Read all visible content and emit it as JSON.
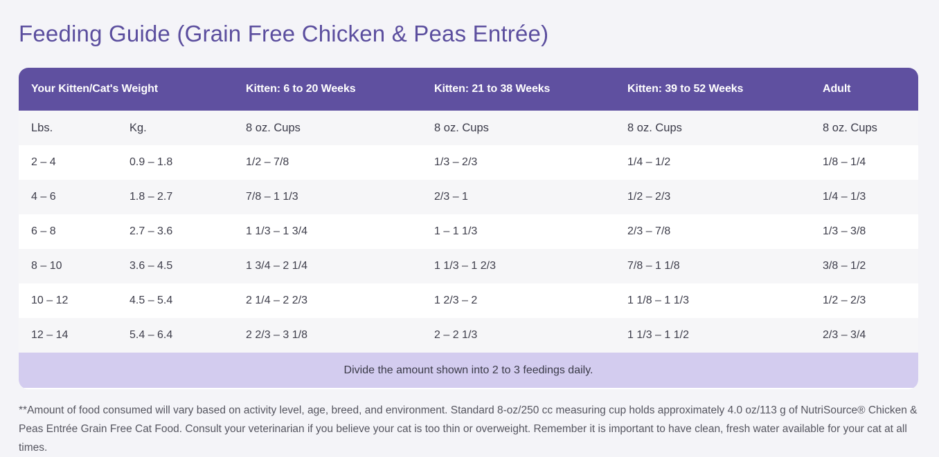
{
  "title": "Feeding Guide (Grain Free Chicken & Peas Entrée)",
  "table": {
    "header": {
      "weight": "Your Kitten/Cat's Weight",
      "kitten_6_20": "Kitten: 6 to 20 Weeks",
      "kitten_21_38": "Kitten: 21 to 38 Weeks",
      "kitten_39_52": "Kitten: 39 to 52 Weeks",
      "adult": "Adult"
    },
    "units": [
      "Lbs.",
      "Kg.",
      "8 oz. Cups",
      "8 oz. Cups",
      "8 oz. Cups",
      "8 oz. Cups"
    ],
    "rows": [
      [
        "2 – 4",
        "0.9 – 1.8",
        "1/2 – 7/8",
        "1/3 – 2/3",
        "1/4 – 1/2",
        "1/8 – 1/4"
      ],
      [
        "4 – 6",
        "1.8 – 2.7",
        "7/8 – 1 1/3",
        "2/3 – 1",
        "1/2 – 2/3",
        "1/4 – 1/3"
      ],
      [
        "6 – 8",
        "2.7 – 3.6",
        "1 1/3 – 1 3/4",
        "1 – 1 1/3",
        "2/3 – 7/8",
        "1/3 – 3/8"
      ],
      [
        "8 – 10",
        "3.6 – 4.5",
        "1 3/4 – 2 1/4",
        "1 1/3 – 1 2/3",
        "7/8 – 1 1/8",
        "3/8 – 1/2"
      ],
      [
        "10 – 12",
        "4.5 – 5.4",
        "2 1/4 – 2 2/3",
        "1 2/3 – 2",
        "1 1/8 – 1 1/3",
        "1/2 – 2/3"
      ],
      [
        "12 – 14",
        "5.4 – 6.4",
        "2 2/3 – 3 1/8",
        "2 – 2 1/3",
        "1 1/3 – 1 1/2",
        "2/3 – 3/4"
      ]
    ],
    "note": "Divide the amount shown into 2 to 3 feedings daily."
  },
  "footnote": "**Amount of food consumed will vary based on activity level, age, breed, and environment. Standard 8-oz/250 cc measuring cup holds approximately 4.0 oz/113 g of NutriSource® Chicken & Peas Entrée Grain Free Cat Food. Consult your veterinarian if you believe your cat is too thin or overweight. Remember it is important to have clean, fresh water available for your cat at all times.",
  "colors": {
    "title": "#5b4e9e",
    "header_bg": "#5f50a0",
    "note_bg": "#d3ccef",
    "page_bg": "#f4f4f8"
  }
}
